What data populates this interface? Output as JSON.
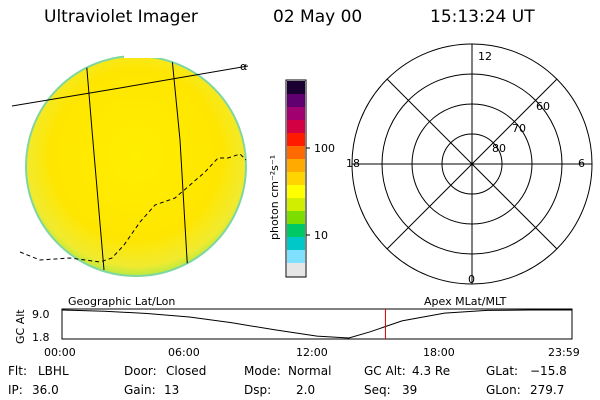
{
  "header": {
    "instrument": "Ultraviolet Imager",
    "date": "02 May 00",
    "time": "15:13:24 UT"
  },
  "image_panel": {
    "left_label": "Geographic Lat/Lon",
    "corner_mark": "α"
  },
  "color_bar": {
    "unit_label": "photon cm⁻²s⁻¹",
    "ticks": [
      "100",
      "10"
    ],
    "colors": [
      "#e6e6e6",
      "#7fe0ff",
      "#00c8c8",
      "#00c864",
      "#7cdd00",
      "#d2ee00",
      "#ffff00",
      "#ffd400",
      "#ffaa00",
      "#ff6a00",
      "#ff1a00",
      "#d40044",
      "#a00070",
      "#600070",
      "#1a0030"
    ]
  },
  "polar_plot": {
    "right_label": "Apex MLat/MLT",
    "mlt_labels": {
      "top": "12",
      "bottom": "0",
      "left": "18",
      "right": "6"
    },
    "lat_labels": [
      "60",
      "70",
      "80"
    ]
  },
  "chart_data": {
    "type": "line",
    "title": "",
    "ylabel": "GC Alt",
    "y_ticks": [
      "9.0",
      "1.8"
    ],
    "x_ticks": [
      "00:00",
      "06:00",
      "12:00",
      "18:00",
      "23:59"
    ],
    "ylim": [
      1.8,
      9.0
    ],
    "x_hours": [
      0,
      2,
      4,
      6,
      8,
      10,
      12,
      13.5,
      14.5,
      16,
      18,
      20,
      22,
      23.98
    ],
    "values": [
      9.0,
      8.7,
      8.1,
      7.2,
      5.7,
      3.9,
      2.3,
      1.8,
      3.4,
      6.2,
      8.2,
      8.9,
      9.0,
      9.0
    ],
    "current_marker_hour": 15.22
  },
  "status": {
    "flt_label": "Flt:",
    "flt_value": "LBHL",
    "door_label": "Door:",
    "door_value": "Closed",
    "mode_label": "Mode:",
    "mode_value": "Normal",
    "gcalt_label": "GC Alt:",
    "gcalt_value": "4.3 Re",
    "glat_label": "GLat:",
    "glat_value": "−15.8",
    "ip_label": "IP:",
    "ip_value": "36.0",
    "gain_label": "Gain:",
    "gain_value": "13",
    "dsp_label": "Dsp:",
    "dsp_value": "2.0",
    "seq_label": "Seq:",
    "seq_value": "39",
    "glon_label": "GLon:",
    "glon_value": "279.7"
  }
}
